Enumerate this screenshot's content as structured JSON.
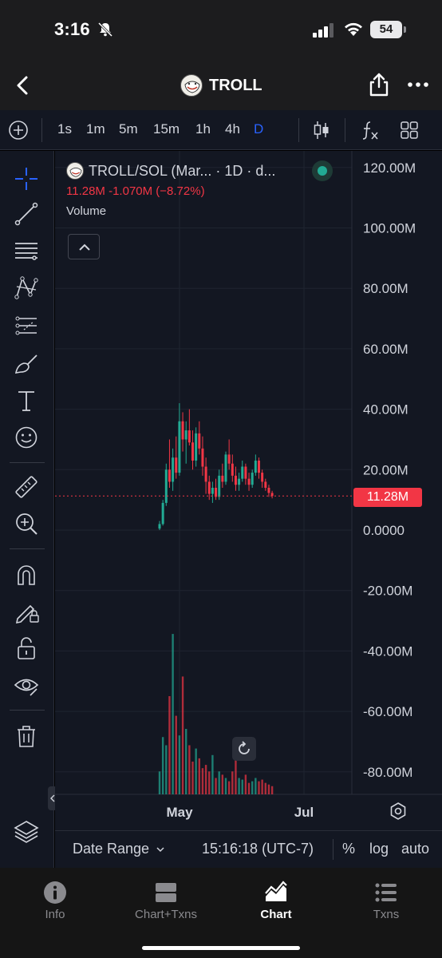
{
  "status_bar": {
    "time": "3:16",
    "battery": "54",
    "icons": [
      "bell-slash-icon",
      "cellular-signal-icon",
      "wifi-icon",
      "battery-icon"
    ]
  },
  "header": {
    "title": "TROLL",
    "icons": [
      "back-chevron-icon",
      "token-avatar-icon",
      "share-icon",
      "more-dots-icon"
    ]
  },
  "timeframes": {
    "items": [
      "1s",
      "1m",
      "5m",
      "15m",
      "1h",
      "4h",
      "D"
    ],
    "active": "D",
    "icons": [
      "add-indicator-icon",
      "candlestick-type-icon",
      "fx-indicators-icon",
      "layout-grid-icon"
    ]
  },
  "drawing_tools": {
    "icons": [
      "crosshair-icon",
      "trend-line-icon",
      "fib-levels-icon",
      "pattern-icon",
      "forecast-icon",
      "brush-icon",
      "text-icon",
      "emoji-icon",
      "ruler-icon",
      "zoom-in-icon",
      "magnet-icon",
      "lock-drawing-icon",
      "unlock-icon",
      "eye-icon",
      "trash-icon",
      "layers-icon"
    ]
  },
  "legend": {
    "symbol": "TROLL/SOL (Mar... · 1D · d...",
    "last": "11.28M",
    "change": "-1.070M",
    "change_pct": "(−8.72%)",
    "volume_label": "Volume"
  },
  "colors": {
    "background": "#131722",
    "up": "#22ab94",
    "down": "#f23645",
    "accent": "#2962ff",
    "grid": "#1f2430",
    "text": "#d1d4dc"
  },
  "chart_data": {
    "type": "candlestick",
    "symbol": "TROLL/SOL",
    "interval": "1D",
    "y_axis_labels": [
      "120.00M",
      "100.00M",
      "80.00M",
      "60.00M",
      "40.00M",
      "20.00M",
      "0.0000",
      "-20.00M",
      "-40.00M",
      "-60.00M",
      "-80.00M"
    ],
    "x_axis_labels": [
      "May",
      "Jul"
    ],
    "ylim": [
      -88000000,
      125000000
    ],
    "last_price_label": "11.28M",
    "last_price": 11280000,
    "candles": [
      {
        "o": 0.5,
        "h": 3,
        "l": 0,
        "c": 2
      },
      {
        "o": 2,
        "h": 10,
        "l": 1.5,
        "c": 9
      },
      {
        "o": 9,
        "h": 22,
        "l": 8,
        "c": 20
      },
      {
        "o": 20,
        "h": 30,
        "l": 14,
        "c": 16
      },
      {
        "o": 16,
        "h": 27,
        "l": 13,
        "c": 24
      },
      {
        "o": 24,
        "h": 31,
        "l": 17,
        "c": 19
      },
      {
        "o": 19,
        "h": 42,
        "l": 18,
        "c": 36
      },
      {
        "o": 36,
        "h": 39,
        "l": 26,
        "c": 30
      },
      {
        "o": 30,
        "h": 36,
        "l": 22,
        "c": 33
      },
      {
        "o": 33,
        "h": 40,
        "l": 28,
        "c": 29
      },
      {
        "o": 29,
        "h": 33,
        "l": 20,
        "c": 23
      },
      {
        "o": 23,
        "h": 34,
        "l": 21,
        "c": 32
      },
      {
        "o": 32,
        "h": 36,
        "l": 25,
        "c": 27
      },
      {
        "o": 27,
        "h": 31,
        "l": 18,
        "c": 21
      },
      {
        "o": 21,
        "h": 24,
        "l": 12,
        "c": 16
      },
      {
        "o": 16,
        "h": 18,
        "l": 10,
        "c": 12
      },
      {
        "o": 12,
        "h": 16,
        "l": 9,
        "c": 14
      },
      {
        "o": 14,
        "h": 17,
        "l": 10,
        "c": 11
      },
      {
        "o": 11,
        "h": 20,
        "l": 10,
        "c": 18
      },
      {
        "o": 18,
        "h": 22,
        "l": 14,
        "c": 16
      },
      {
        "o": 16,
        "h": 26,
        "l": 15,
        "c": 25
      },
      {
        "o": 25,
        "h": 30,
        "l": 20,
        "c": 22
      },
      {
        "o": 22,
        "h": 25,
        "l": 16,
        "c": 18
      },
      {
        "o": 18,
        "h": 21,
        "l": 13,
        "c": 15
      },
      {
        "o": 15,
        "h": 19,
        "l": 13,
        "c": 17
      },
      {
        "o": 17,
        "h": 23,
        "l": 16,
        "c": 21
      },
      {
        "o": 21,
        "h": 22,
        "l": 15,
        "c": 17
      },
      {
        "o": 17,
        "h": 19,
        "l": 13,
        "c": 15
      },
      {
        "o": 15,
        "h": 20,
        "l": 14,
        "c": 19
      },
      {
        "o": 19,
        "h": 25,
        "l": 18,
        "c": 23
      },
      {
        "o": 23,
        "h": 24,
        "l": 17,
        "c": 19
      },
      {
        "o": 19,
        "h": 20,
        "l": 14,
        "c": 16
      },
      {
        "o": 16,
        "h": 17,
        "l": 13,
        "c": 14
      },
      {
        "o": 14,
        "h": 15,
        "l": 11,
        "c": 12.3
      },
      {
        "o": 12.3,
        "h": 13,
        "l": 10.5,
        "c": 11.28
      }
    ],
    "volume": [
      14,
      35,
      30,
      60,
      98,
      48,
      36,
      72,
      40,
      30,
      20,
      28,
      22,
      16,
      18,
      14,
      24,
      10,
      14,
      12,
      10,
      8,
      14,
      26,
      10,
      9,
      12,
      7,
      8,
      10,
      8,
      9,
      7,
      6,
      5
    ]
  },
  "bottom_strip": {
    "date_range_label": "Date Range",
    "clock": "15:16:18 (UTC-7)",
    "percent_label": "%",
    "log_label": "log",
    "auto_label": "auto"
  },
  "tabs": [
    {
      "label": "Info",
      "icon": "info-icon"
    },
    {
      "label": "Chart+Txns",
      "icon": "chart-txns-icon"
    },
    {
      "label": "Chart",
      "icon": "chart-icon"
    },
    {
      "label": "Txns",
      "icon": "list-icon"
    }
  ],
  "active_tab": "Chart"
}
